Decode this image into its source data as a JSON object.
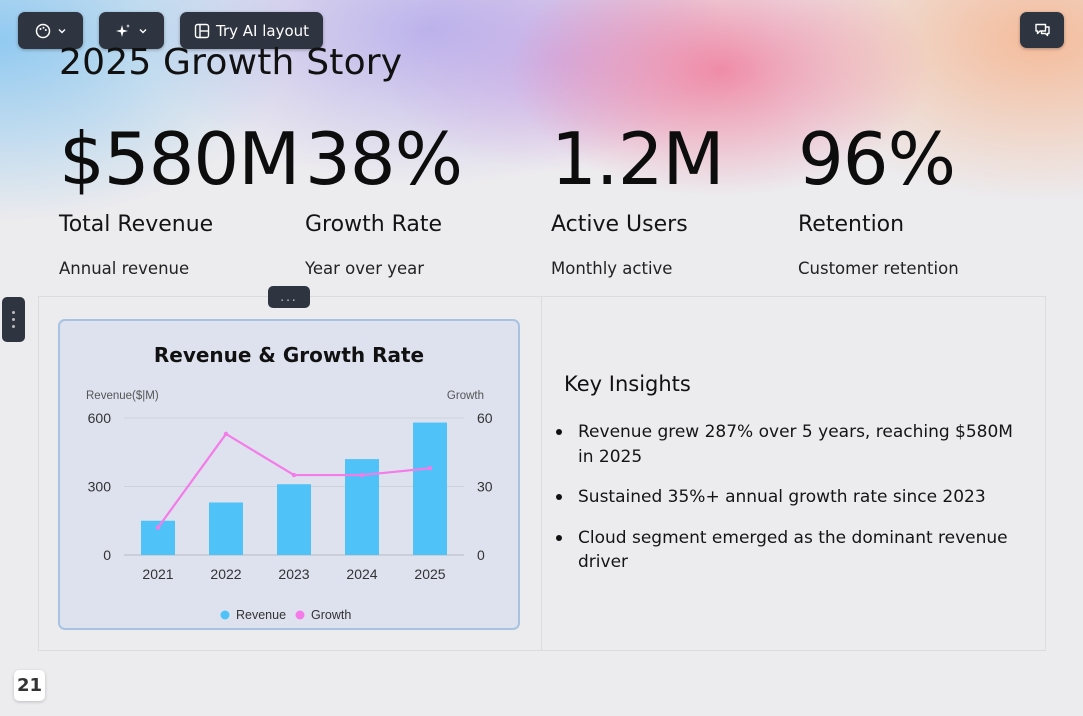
{
  "toolbar": {
    "theme_icon": "palette-icon",
    "magic_icon": "sparkles-icon",
    "ai_layout_label": "Try AI layout",
    "ai_layout_icon": "layout-icon",
    "comments_icon": "comments-icon"
  },
  "slide": {
    "title": "2025 Growth Story",
    "stats": [
      {
        "value": "$580M",
        "label": "Total Revenue",
        "desc": "Annual revenue"
      },
      {
        "value": "38%",
        "label": "Growth Rate",
        "desc": "Year over year"
      },
      {
        "value": "1.2M",
        "label": "Active Users",
        "desc": "Monthly active"
      },
      {
        "value": "96%",
        "label": "Retention",
        "desc": "Customer retention"
      }
    ],
    "drag_handle_label": "...",
    "insights": {
      "title": "Key Insights",
      "items": [
        "Revenue grew 287% over 5 years, reaching $580M in 2025",
        "Sustained 35%+ annual growth rate since 2023",
        "Cloud segment emerged as the dominant revenue driver"
      ]
    },
    "page_number": "21"
  },
  "colors": {
    "revenue": "#4fc3f7",
    "growth": "#f47be8",
    "toolbar_bg": "#2e3440"
  },
  "chart_data": {
    "type": "bar",
    "title": "Revenue & Growth Rate",
    "categories": [
      "2021",
      "2022",
      "2023",
      "2024",
      "2025"
    ],
    "y_left_label": "Revenue($|M)",
    "y_right_label": "Growth",
    "y_left_range": [
      0,
      600
    ],
    "y_left_ticks": [
      "0",
      "300",
      "600"
    ],
    "y_right_range": [
      0,
      60
    ],
    "y_right_ticks": [
      "0",
      "30",
      "60"
    ],
    "series": [
      {
        "name": "Revenue",
        "type": "bar",
        "axis": "left",
        "values": [
          150,
          230,
          310,
          420,
          580
        ]
      },
      {
        "name": "Growth",
        "type": "line",
        "axis": "right",
        "values": [
          12,
          53,
          35,
          35,
          38
        ]
      }
    ],
    "legend_position": "bottom",
    "grid": true
  }
}
